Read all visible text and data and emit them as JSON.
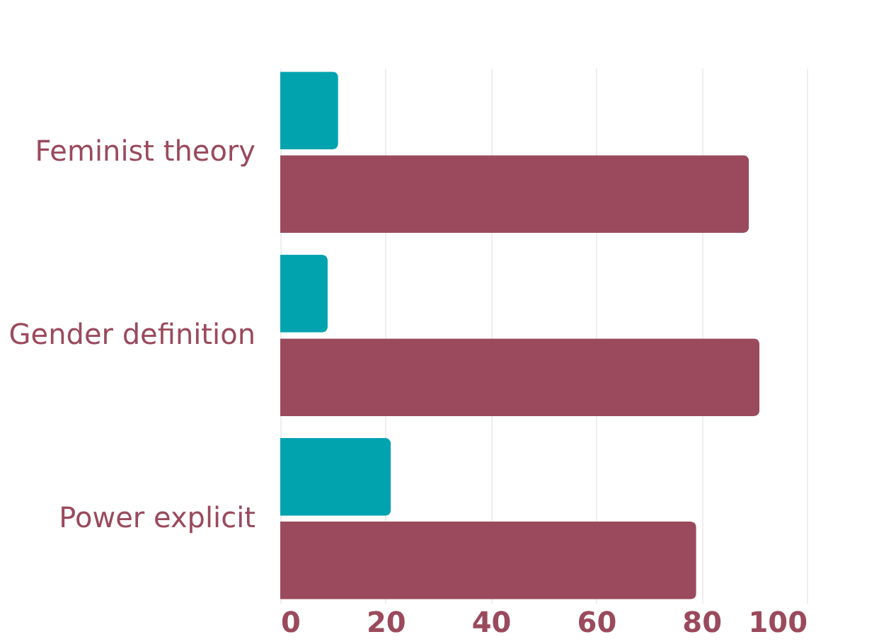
{
  "chart_data": {
    "type": "bar",
    "orientation": "horizontal",
    "categories": [
      "Feminist theory",
      "Gender definition",
      "Power explicit"
    ],
    "series": [
      {
        "color": "#00a3ae",
        "values": [
          11,
          9,
          21
        ]
      },
      {
        "color": "#9a4a5c",
        "values": [
          89,
          91,
          79
        ]
      }
    ],
    "xlim": [
      0,
      100
    ],
    "xticks": [
      0,
      20,
      40,
      60,
      80,
      100
    ],
    "grid": "x"
  }
}
